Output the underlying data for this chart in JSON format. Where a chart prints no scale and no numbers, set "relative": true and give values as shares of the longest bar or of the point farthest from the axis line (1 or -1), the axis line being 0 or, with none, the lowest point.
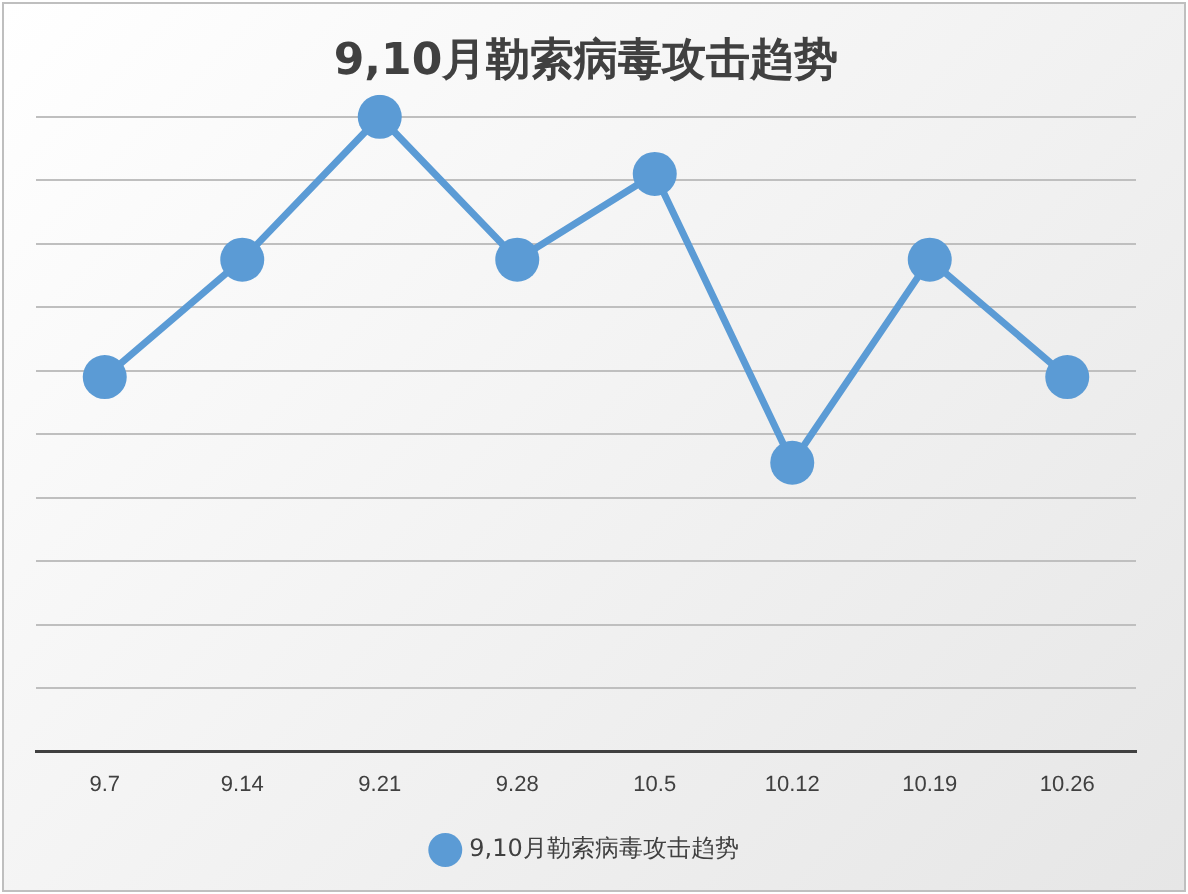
{
  "chart_data": {
    "type": "line",
    "title": "9,10月勒索病毒攻击趋势",
    "categories": [
      "9.7",
      "9.14",
      "9.21",
      "9.28",
      "10.5",
      "10.12",
      "10.19",
      "10.26"
    ],
    "relative": true,
    "series": [
      {
        "name": "9,10月勒索病毒攻击趋势",
        "color": "#5b9bd5",
        "values": [
          0.59,
          0.775,
          1,
          0.775,
          0.91,
          0.455,
          0.775,
          0.59
        ]
      }
    ],
    "grid": "y",
    "legend": "bottom",
    "marker": "circle",
    "line_style": "solid"
  }
}
